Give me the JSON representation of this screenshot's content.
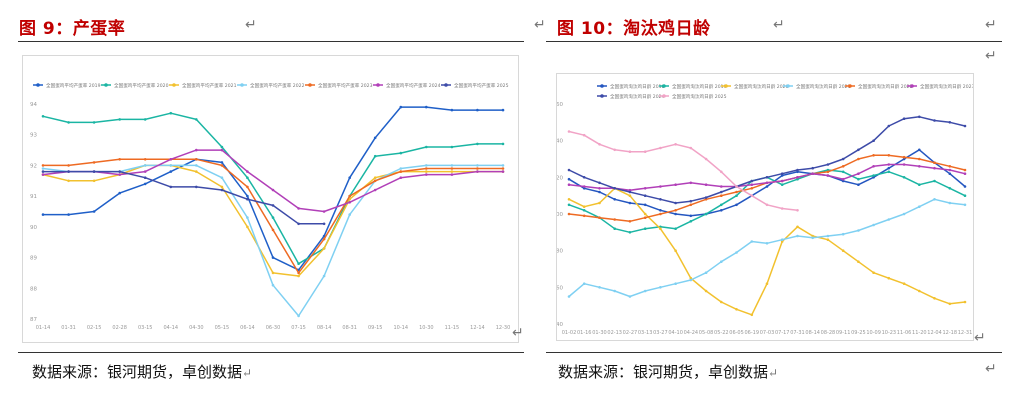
{
  "left_panel": {
    "title": "图 9：产蛋率",
    "source": "数据来源：银河期货，卓创数据",
    "return_mark": "↵",
    "chart_data": {
      "type": "line",
      "title": "",
      "legend": [
        "全国蛋鸡平均产蛋率 2019",
        "全国蛋鸡平均产蛋率 2020",
        "全国蛋鸡平均产蛋率 2021",
        "全国蛋鸡平均产蛋率 2022",
        "全国蛋鸡平均产蛋率 2023",
        "全国蛋鸡平均产蛋率 2024",
        "全国蛋鸡平均产蛋率 2025"
      ],
      "x": [
        "01-14",
        "01-31",
        "02-15",
        "02-28",
        "03-15",
        "04-14",
        "04-30",
        "05-15",
        "06-14",
        "06-30",
        "07-15",
        "08-14",
        "08-31",
        "09-15",
        "10-14",
        "10-30",
        "11-15",
        "12-14",
        "12-30"
      ],
      "ylim": [
        87,
        94
      ],
      "yticks": [
        87,
        88,
        89,
        90,
        91,
        92,
        93,
        94
      ],
      "series": [
        {
          "name": "2019",
          "color": "#1f5fc8",
          "values": [
            90.4,
            90.4,
            90.5,
            91.1,
            91.4,
            91.8,
            92.2,
            92.1,
            91.0,
            89.0,
            88.6,
            89.7,
            91.6,
            92.9,
            93.9,
            93.9,
            93.8,
            93.8,
            93.8
          ]
        },
        {
          "name": "2020",
          "color": "#1ab5a3",
          "values": [
            93.6,
            93.4,
            93.4,
            93.5,
            93.5,
            93.7,
            93.5,
            92.6,
            91.6,
            90.3,
            88.8,
            89.3,
            91.0,
            92.3,
            92.4,
            92.6,
            92.6,
            92.7,
            92.7
          ]
        },
        {
          "name": "2021",
          "color": "#f2c12e",
          "values": [
            91.7,
            91.5,
            91.5,
            91.7,
            92.0,
            92.0,
            91.8,
            91.3,
            90.0,
            88.5,
            88.4,
            89.3,
            90.9,
            91.6,
            91.8,
            91.8,
            91.8,
            91.8,
            91.8
          ]
        },
        {
          "name": "2022",
          "color": "#7fd0f2",
          "values": [
            91.9,
            91.8,
            91.8,
            91.8,
            92.0,
            92.0,
            92.0,
            91.6,
            90.3,
            88.1,
            87.1,
            88.4,
            90.4,
            91.5,
            91.9,
            92.0,
            92.0,
            92.0,
            92.0
          ]
        },
        {
          "name": "2023",
          "color": "#ee6a22",
          "values": [
            92.0,
            92.0,
            92.1,
            92.2,
            92.2,
            92.2,
            92.2,
            92.0,
            91.3,
            89.9,
            88.5,
            89.6,
            91.0,
            91.5,
            91.8,
            91.9,
            91.9,
            91.9,
            91.9
          ]
        },
        {
          "name": "2024",
          "color": "#b13fb8",
          "values": [
            91.7,
            91.8,
            91.8,
            91.7,
            91.8,
            92.2,
            92.5,
            92.5,
            91.8,
            91.2,
            90.6,
            90.5,
            90.8,
            91.2,
            91.6,
            91.7,
            91.7,
            91.8,
            91.8
          ]
        },
        {
          "name": "2025",
          "color": "#3d4ba8",
          "values": [
            91.8,
            91.8,
            91.8,
            91.8,
            91.6,
            91.3,
            91.3,
            91.2,
            90.9,
            90.7,
            90.1,
            90.1,
            null,
            null,
            null,
            null,
            null,
            null,
            null
          ]
        }
      ]
    }
  },
  "right_panel": {
    "title": "图 10：淘汰鸡日龄",
    "source": "数据来源：银河期货，卓创数据",
    "return_mark": "↵",
    "chart_data": {
      "type": "line",
      "title": "",
      "legend": [
        "全国蛋鸡淘汰鸡日龄 2018",
        "全国蛋鸡淘汰鸡日龄 2019",
        "全国蛋鸡淘汰鸡日龄 2020",
        "全国蛋鸡淘汰鸡日龄 2021",
        "全国蛋鸡淘汰鸡日龄 2022",
        "全国蛋鸡淘汰鸡日龄 2023",
        "全国蛋鸡淘汰鸡日龄 2024",
        "全国蛋鸡淘汰鸡日龄 2025"
      ],
      "x": [
        "01-02",
        "01-16",
        "01-30",
        "02-13",
        "02-27",
        "03-13",
        "03-27",
        "04-10",
        "04-24",
        "05-08",
        "05-22",
        "06-05",
        "06-19",
        "07-03",
        "07-17",
        "07-31",
        "08-14",
        "08-28",
        "09-11",
        "09-25",
        "10-09",
        "10-23",
        "11-06",
        "11-20",
        "12-04",
        "12-18",
        "12-31"
      ],
      "ylim": [
        440,
        560
      ],
      "yticks": [
        440,
        460,
        480,
        500,
        520,
        540,
        560
      ],
      "series": [
        {
          "name": "2018",
          "color": "#2456c0",
          "values": [
            519,
            514,
            512,
            508,
            506,
            505,
            502,
            500,
            499,
            500,
            502,
            505,
            510,
            515,
            521,
            523,
            522,
            521,
            518,
            516,
            520,
            525,
            530,
            535,
            528,
            522,
            515
          ]
        },
        {
          "name": "2019",
          "color": "#1ab5a3",
          "values": [
            505,
            502,
            498,
            492,
            490,
            492,
            493,
            492,
            496,
            500,
            505,
            510,
            518,
            520,
            516,
            519,
            522,
            524,
            523,
            519,
            521,
            523,
            520,
            516,
            518,
            514,
            510
          ]
        },
        {
          "name": "2020",
          "color": "#f2c12e",
          "values": [
            508,
            504,
            506,
            514,
            510,
            500,
            492,
            480,
            465,
            458,
            452,
            448,
            445,
            462,
            485,
            493,
            488,
            486,
            480,
            474,
            468,
            465,
            462,
            458,
            454,
            451,
            452
          ]
        },
        {
          "name": "2021",
          "color": "#7fd0f2",
          "values": [
            455,
            462,
            460,
            458,
            455,
            458,
            460,
            462,
            464,
            468,
            474,
            479,
            485,
            484,
            486,
            488,
            487,
            488,
            489,
            491,
            494,
            497,
            500,
            504,
            508,
            506,
            505
          ]
        },
        {
          "name": "2022",
          "color": "#ee6a22",
          "values": [
            500,
            499,
            498,
            497,
            496,
            498,
            500,
            502,
            505,
            508,
            510,
            512,
            514,
            517,
            518,
            520,
            522,
            523,
            526,
            530,
            532,
            532,
            531,
            530,
            528,
            526,
            524
          ]
        },
        {
          "name": "2023",
          "color": "#b13fb8",
          "values": [
            516,
            515,
            514,
            514,
            513,
            514,
            515,
            516,
            517,
            516,
            515,
            515,
            516,
            517,
            518,
            520,
            522,
            521,
            519,
            522,
            526,
            527,
            527,
            526,
            525,
            524,
            522
          ]
        },
        {
          "name": "2024",
          "color": "#3d4ba8",
          "values": [
            524,
            520,
            517,
            514,
            512,
            510,
            508,
            506,
            507,
            509,
            512,
            515,
            518,
            520,
            522,
            524,
            525,
            527,
            530,
            535,
            540,
            548,
            552,
            553,
            551,
            550,
            548
          ]
        },
        {
          "name": "2025",
          "color": "#f1a3c6",
          "values": [
            545,
            543,
            538,
            535,
            534,
            534,
            536,
            538,
            536,
            530,
            523,
            515,
            510,
            505,
            503,
            502,
            null,
            null,
            null,
            null,
            null,
            null,
            null,
            null,
            null,
            null,
            null
          ]
        }
      ]
    }
  }
}
